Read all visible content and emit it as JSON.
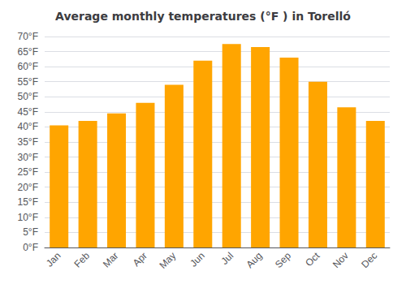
{
  "chart_data": {
    "type": "bar",
    "title": "Average monthly temperatures (°F ) in Torelló",
    "categories": [
      "Jan",
      "Feb",
      "Mar",
      "Apr",
      "May",
      "Jun",
      "Jul",
      "Aug",
      "Sep",
      "Oct",
      "Nov",
      "Dec"
    ],
    "values": [
      40.5,
      42.0,
      44.5,
      48.0,
      54.0,
      62.0,
      67.5,
      66.5,
      63.0,
      55.0,
      46.5,
      42.0
    ],
    "color": "#FFA500",
    "ylim": [
      0,
      70
    ],
    "yticks": [
      {
        "value": 0,
        "label": "0°F"
      },
      {
        "value": 5,
        "label": "5°F"
      },
      {
        "value": 10,
        "label": "10°F"
      },
      {
        "value": 15,
        "label": "15°F"
      },
      {
        "value": 20,
        "label": "20°F"
      },
      {
        "value": 25,
        "label": "25°F"
      },
      {
        "value": 30,
        "label": "30°F"
      },
      {
        "value": 35,
        "label": "35°F"
      },
      {
        "value": 40,
        "label": "40°F"
      },
      {
        "value": 45,
        "label": "45°F"
      },
      {
        "value": 50,
        "label": "50°F"
      },
      {
        "value": 55,
        "label": "55°F"
      },
      {
        "value": 60,
        "label": "60°F"
      },
      {
        "value": 65,
        "label": "65°F"
      },
      {
        "value": 70,
        "label": "70°F"
      }
    ],
    "grid": true
  }
}
